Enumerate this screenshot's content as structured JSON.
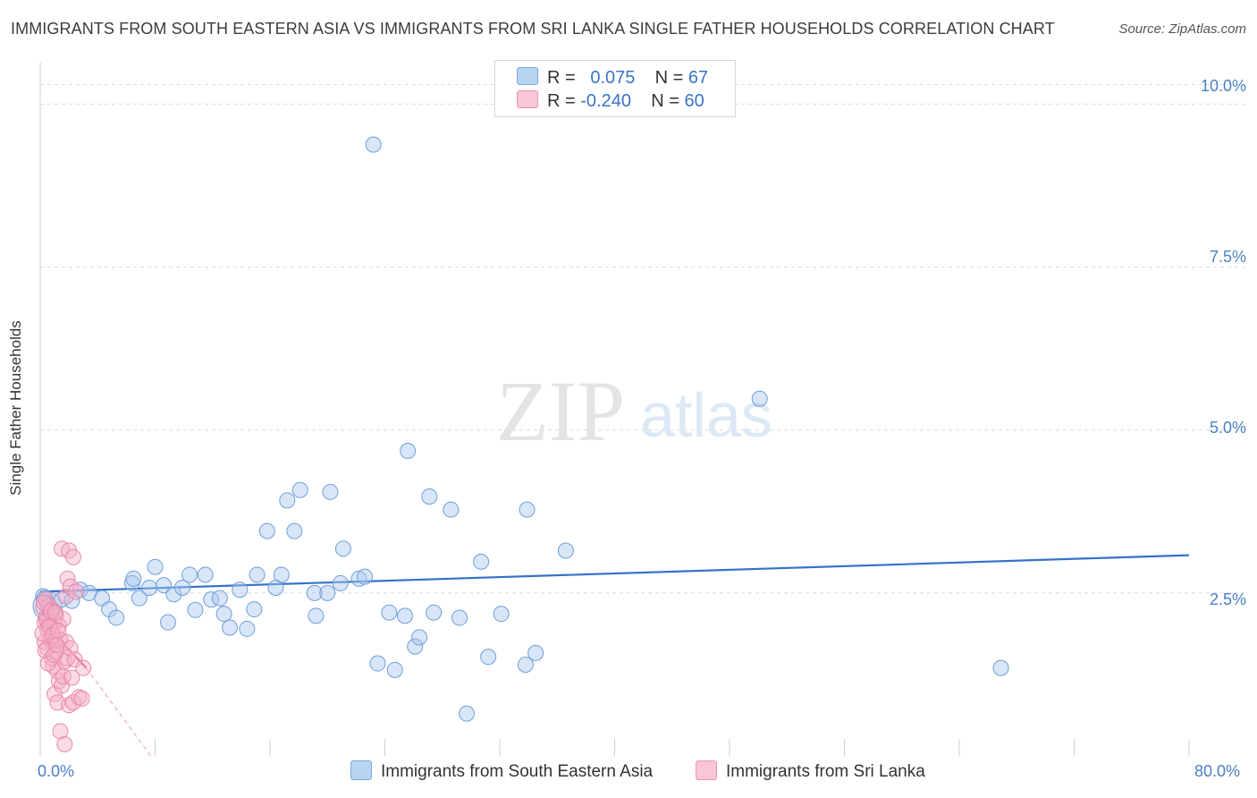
{
  "title": "IMMIGRANTS FROM SOUTH EASTERN ASIA VS IMMIGRANTS FROM SRI LANKA SINGLE FATHER HOUSEHOLDS CORRELATION CHART",
  "source": "Source: ZipAtlas.com",
  "watermark": {
    "zip": "ZIP",
    "atlas": "atlas"
  },
  "legend_top": [
    {
      "r_label": "R =",
      "r_value": "0.075",
      "n_label": "N =",
      "n_value": "67"
    },
    {
      "r_label": "R =",
      "r_value": "-0.240",
      "n_label": "N =",
      "n_value": "60"
    }
  ],
  "colors": {
    "blue_fill": "#a8c8f0",
    "blue_stroke": "#6f9fd8",
    "blue_line": "#3572c8",
    "pink_fill": "#f5b0c8",
    "pink_stroke": "#e889aa",
    "pink_line": "#e8507e",
    "grid": "#d9d9d9",
    "tick_text": "#4a7fc4"
  },
  "chart_data": {
    "type": "scatter",
    "title": "IMMIGRANTS FROM SOUTH EASTERN ASIA VS IMMIGRANTS FROM SRI LANKA SINGLE FATHER HOUSEHOLDS CORRELATION CHART",
    "xlabel": "",
    "ylabel": "Single Father Households",
    "xlim": [
      0,
      80
    ],
    "ylim": [
      0,
      10.5
    ],
    "x_tick_labels": [
      "0.0%",
      "80.0%"
    ],
    "y_ticks": [
      2.5,
      5.0,
      7.5,
      10.0
    ],
    "y_tick_labels": [
      "2.5%",
      "5.0%",
      "7.5%",
      "10.0%"
    ],
    "grid": "horizontal dashed",
    "legend_position": "bottom",
    "series": [
      {
        "name": "Immigrants from South Eastern Asia",
        "color": "blue",
        "trend": {
          "x": [
            0,
            80
          ],
          "y": [
            2.52,
            3.08
          ]
        },
        "points": [
          [
            0.2,
            2.45
          ],
          [
            0.5,
            2.35
          ],
          [
            1.0,
            2.2
          ],
          [
            1.5,
            2.4
          ],
          [
            2.2,
            2.38
          ],
          [
            2.8,
            2.55
          ],
          [
            3.4,
            2.5
          ],
          [
            4.3,
            2.42
          ],
          [
            4.8,
            2.25
          ],
          [
            5.3,
            2.12
          ],
          [
            6.4,
            2.65
          ],
          [
            6.5,
            2.72
          ],
          [
            6.9,
            2.42
          ],
          [
            7.6,
            2.58
          ],
          [
            8.0,
            2.9
          ],
          [
            8.6,
            2.62
          ],
          [
            8.9,
            2.05
          ],
          [
            9.3,
            2.48
          ],
          [
            9.9,
            2.58
          ],
          [
            10.4,
            2.78
          ],
          [
            10.8,
            2.24
          ],
          [
            11.5,
            2.78
          ],
          [
            11.9,
            2.4
          ],
          [
            12.5,
            2.42
          ],
          [
            12.8,
            2.18
          ],
          [
            13.2,
            1.97
          ],
          [
            13.9,
            2.55
          ],
          [
            14.4,
            1.95
          ],
          [
            14.9,
            2.25
          ],
          [
            15.1,
            2.78
          ],
          [
            15.8,
            3.45
          ],
          [
            16.4,
            2.58
          ],
          [
            16.8,
            2.78
          ],
          [
            17.2,
            3.92
          ],
          [
            17.7,
            3.45
          ],
          [
            18.1,
            4.08
          ],
          [
            19.1,
            2.5
          ],
          [
            19.2,
            2.15
          ],
          [
            20.0,
            2.5
          ],
          [
            20.2,
            4.05
          ],
          [
            20.9,
            2.65
          ],
          [
            21.1,
            3.18
          ],
          [
            22.2,
            2.72
          ],
          [
            22.6,
            2.75
          ],
          [
            23.2,
            9.38
          ],
          [
            23.5,
            1.42
          ],
          [
            24.3,
            2.2
          ],
          [
            24.7,
            1.32
          ],
          [
            25.4,
            2.15
          ],
          [
            25.6,
            4.68
          ],
          [
            26.1,
            1.68
          ],
          [
            26.4,
            1.82
          ],
          [
            27.1,
            3.98
          ],
          [
            27.4,
            2.2
          ],
          [
            28.6,
            3.78
          ],
          [
            29.2,
            2.12
          ],
          [
            29.7,
            0.65
          ],
          [
            30.7,
            2.98
          ],
          [
            31.2,
            1.52
          ],
          [
            32.1,
            2.18
          ],
          [
            33.8,
            1.4
          ],
          [
            33.9,
            3.78
          ],
          [
            34.5,
            1.58
          ],
          [
            36.6,
            3.15
          ],
          [
            50.1,
            5.48
          ],
          [
            66.9,
            1.35
          ],
          [
            0.3,
            2.42
          ]
        ]
      },
      {
        "name": "Immigrants from Sri Lanka",
        "color": "pink",
        "trend": {
          "x": [
            0,
            3.2
          ],
          "y": [
            2.1,
            1.35
          ]
        },
        "trend_ext": {
          "x": [
            3.2,
            7.7
          ],
          "y": [
            1.35,
            0.0
          ]
        },
        "points": [
          [
            0.2,
            2.28
          ],
          [
            0.3,
            2.05
          ],
          [
            0.3,
            1.75
          ],
          [
            0.4,
            2.4
          ],
          [
            0.4,
            2.12
          ],
          [
            0.5,
            1.95
          ],
          [
            0.5,
            1.65
          ],
          [
            0.6,
            2.3
          ],
          [
            0.6,
            2.0
          ],
          [
            0.7,
            1.8
          ],
          [
            0.7,
            2.18
          ],
          [
            0.8,
            1.5
          ],
          [
            0.8,
            2.25
          ],
          [
            0.9,
            1.9
          ],
          [
            0.9,
            1.38
          ],
          [
            1.0,
            2.05
          ],
          [
            1.0,
            1.72
          ],
          [
            1.0,
            0.95
          ],
          [
            1.1,
            2.15
          ],
          [
            1.1,
            1.6
          ],
          [
            1.2,
            1.3
          ],
          [
            1.2,
            0.82
          ],
          [
            1.3,
            2.0
          ],
          [
            1.3,
            1.15
          ],
          [
            1.4,
            0.38
          ],
          [
            1.4,
            1.78
          ],
          [
            1.5,
            1.08
          ],
          [
            1.5,
            3.18
          ],
          [
            1.6,
            1.22
          ],
          [
            1.6,
            2.1
          ],
          [
            1.7,
            1.45
          ],
          [
            1.7,
            0.18
          ],
          [
            1.8,
            1.75
          ],
          [
            1.8,
            2.45
          ],
          [
            1.9,
            1.5
          ],
          [
            1.9,
            2.72
          ],
          [
            2.0,
            0.78
          ],
          [
            2.0,
            3.15
          ],
          [
            2.1,
            1.65
          ],
          [
            2.1,
            2.6
          ],
          [
            2.2,
            1.2
          ],
          [
            2.3,
            3.05
          ],
          [
            2.3,
            0.82
          ],
          [
            2.4,
            1.48
          ],
          [
            2.5,
            2.52
          ],
          [
            0.15,
            1.88
          ],
          [
            0.25,
            2.35
          ],
          [
            0.35,
            1.62
          ],
          [
            0.45,
            2.08
          ],
          [
            0.55,
            1.42
          ],
          [
            0.65,
            1.98
          ],
          [
            0.75,
            2.22
          ],
          [
            0.85,
            1.85
          ],
          [
            0.95,
            1.55
          ],
          [
            1.05,
            2.2
          ],
          [
            1.15,
            1.7
          ],
          [
            2.7,
            0.9
          ],
          [
            2.9,
            0.88
          ],
          [
            3.0,
            1.35
          ],
          [
            1.25,
            1.92
          ]
        ]
      }
    ]
  },
  "legend_bottom": [
    {
      "label": "Immigrants from South Eastern Asia"
    },
    {
      "label": "Immigrants from Sri Lanka"
    }
  ]
}
